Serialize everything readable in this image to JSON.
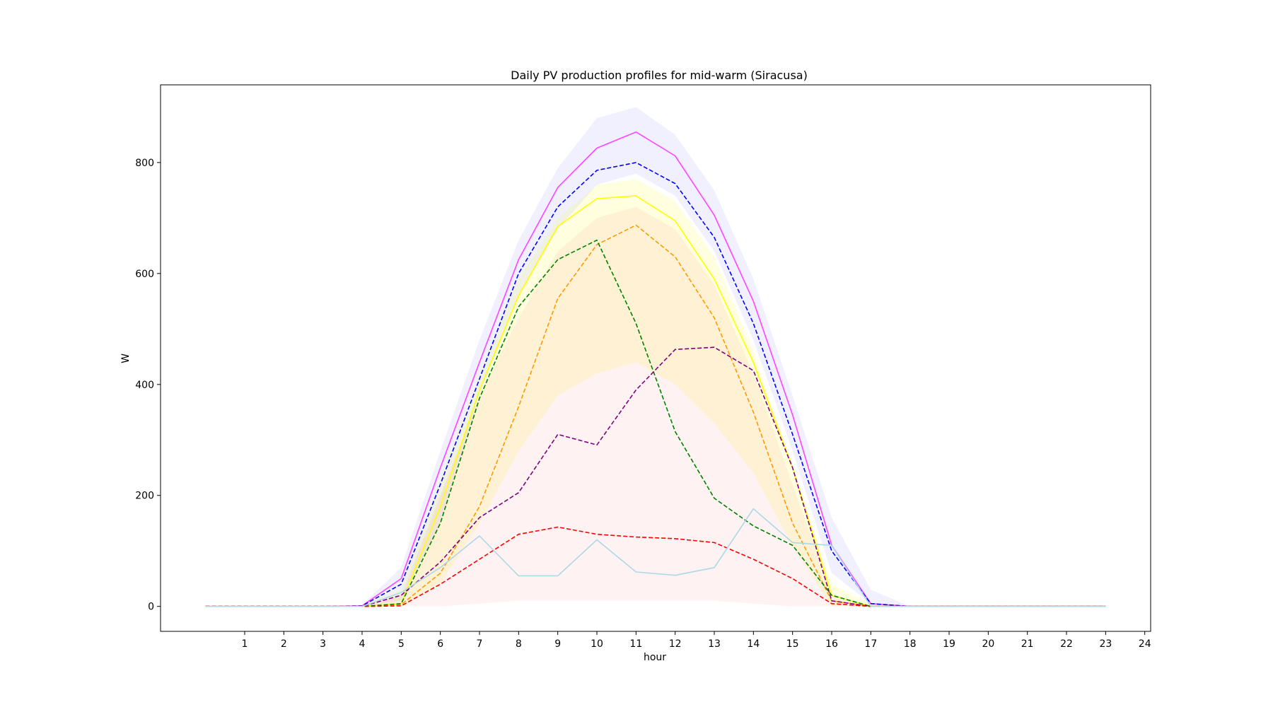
{
  "chart_data": {
    "type": "line",
    "title": "Daily PV production profiles for mid-warm (Siracusa)",
    "xlabel": "hour",
    "ylabel": "W",
    "xlim": [
      -1.15,
      24.15
    ],
    "ylim": [
      -45,
      940
    ],
    "x_ticks": [
      1,
      2,
      3,
      4,
      5,
      6,
      7,
      8,
      9,
      10,
      11,
      12,
      13,
      14,
      15,
      16,
      17,
      18,
      19,
      20,
      21,
      22,
      23,
      24
    ],
    "y_ticks": [
      0,
      200,
      400,
      600,
      800
    ],
    "grid": false,
    "legend": "none",
    "x": [
      0,
      1,
      2,
      3,
      4,
      5,
      6,
      7,
      8,
      9,
      10,
      11,
      12,
      13,
      14,
      15,
      16,
      17,
      18,
      19,
      20,
      21,
      22,
      23
    ],
    "background_bands": [
      {
        "color": "#0000ff",
        "opacity": 0.06,
        "lower": [
          0,
          0,
          0,
          0,
          0,
          10,
          150,
          380,
          560,
          680,
          760,
          780,
          740,
          640,
          480,
          280,
          60,
          5,
          0,
          0,
          0,
          0,
          0,
          0
        ],
        "upper": [
          0,
          0,
          0,
          0,
          3,
          70,
          280,
          480,
          660,
          790,
          880,
          900,
          850,
          750,
          590,
          380,
          160,
          30,
          0,
          0,
          0,
          0,
          0,
          0
        ]
      },
      {
        "color": "#ffff00",
        "opacity": 0.12,
        "lower": [
          0,
          0,
          0,
          0,
          0,
          0,
          40,
          150,
          280,
          380,
          420,
          440,
          400,
          330,
          240,
          110,
          0,
          0,
          0,
          0,
          0,
          0,
          0,
          0
        ],
        "upper": [
          0,
          0,
          0,
          0,
          1,
          30,
          230,
          420,
          590,
          700,
          760,
          770,
          730,
          630,
          460,
          250,
          40,
          5,
          0,
          0,
          0,
          0,
          0,
          0
        ]
      },
      {
        "color": "#ff0000",
        "opacity": 0.05,
        "lower": [
          0,
          0,
          0,
          0,
          0,
          0,
          0,
          5,
          10,
          10,
          10,
          10,
          10,
          10,
          5,
          0,
          0,
          0,
          0,
          0,
          0,
          0,
          0,
          0
        ],
        "upper": [
          0,
          0,
          0,
          0,
          0,
          20,
          200,
          380,
          520,
          640,
          700,
          720,
          680,
          580,
          420,
          220,
          20,
          0,
          0,
          0,
          0,
          0,
          0,
          0
        ]
      }
    ],
    "series": [
      {
        "color": "#ff44ff",
        "dash": false,
        "values": [
          0,
          0,
          0,
          0,
          1,
          50,
          250,
          440,
          625,
          755,
          826,
          855,
          812,
          705,
          550,
          345,
          110,
          5,
          0,
          0,
          0,
          0,
          0,
          0
        ]
      },
      {
        "color": "#0000ff",
        "dash": true,
        "values": [
          0,
          0,
          0,
          0,
          1,
          40,
          220,
          410,
          600,
          720,
          786,
          800,
          762,
          665,
          510,
          310,
          100,
          5,
          0,
          0,
          0,
          0,
          0,
          0
        ]
      },
      {
        "color": "#ffff00",
        "dash": false,
        "values": [
          0,
          0,
          0,
          0,
          0,
          5,
          180,
          390,
          560,
          685,
          735,
          740,
          695,
          590,
          440,
          250,
          20,
          0,
          0,
          0,
          0,
          0,
          0,
          0
        ]
      },
      {
        "color": "#ff9900",
        "dash": true,
        "values": [
          0,
          0,
          0,
          0,
          0,
          3,
          60,
          180,
          360,
          555,
          652,
          687,
          630,
          520,
          350,
          150,
          10,
          0,
          0,
          0,
          0,
          0,
          0,
          0
        ]
      },
      {
        "color": "#008000",
        "dash": true,
        "values": [
          0,
          0,
          0,
          0,
          0,
          5,
          150,
          375,
          540,
          625,
          660,
          510,
          315,
          195,
          145,
          110,
          20,
          0,
          0,
          0,
          0,
          0,
          0,
          0
        ]
      },
      {
        "color": "#800080",
        "dash": true,
        "values": [
          0,
          0,
          0,
          0,
          0,
          20,
          80,
          160,
          205,
          310,
          291,
          390,
          463,
          467,
          425,
          250,
          10,
          0,
          0,
          0,
          0,
          0,
          0,
          0
        ]
      },
      {
        "color": "#ff0000",
        "dash": true,
        "values": [
          0,
          0,
          0,
          0,
          0,
          1,
          40,
          85,
          130,
          143,
          130,
          125,
          122,
          115,
          85,
          50,
          5,
          0,
          0,
          0,
          0,
          0,
          0,
          0
        ]
      },
      {
        "color": "#add8e6",
        "dash": false,
        "values": [
          0,
          0,
          0,
          0,
          0,
          25,
          70,
          127,
          55,
          55,
          120,
          62,
          56,
          70,
          176,
          115,
          110,
          0,
          0,
          0,
          0,
          0,
          0,
          0
        ]
      }
    ]
  }
}
